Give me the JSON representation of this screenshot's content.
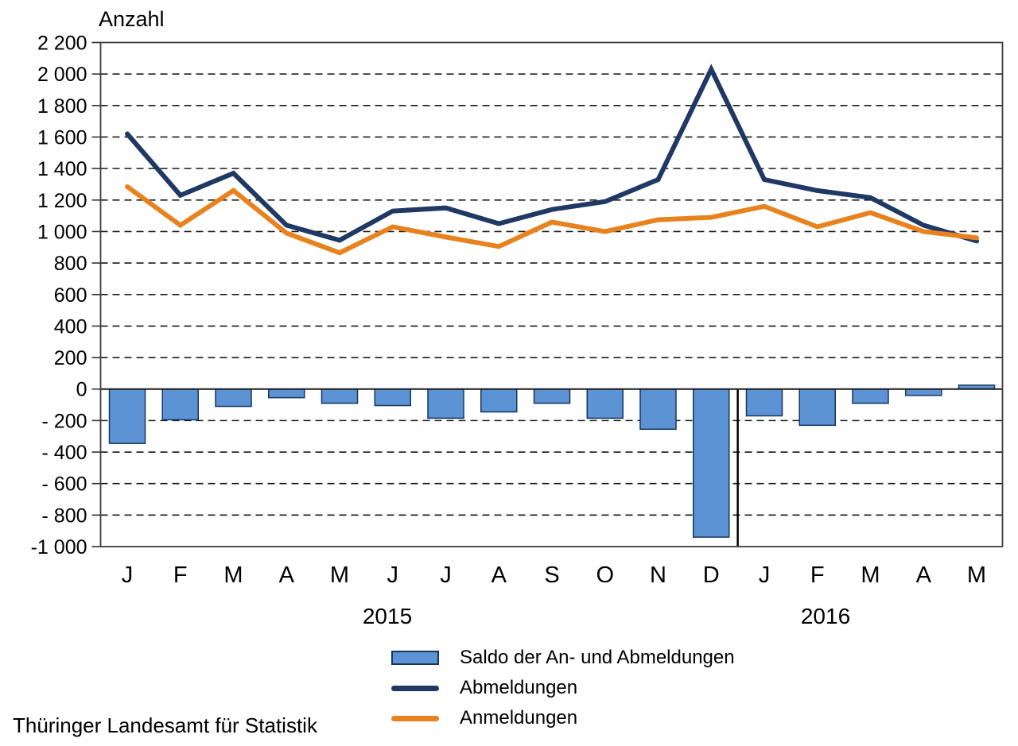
{
  "y_axis_title": "Anzahl",
  "source": "Thüringer Landesamt für Statistik",
  "years": [
    {
      "label": "2015"
    },
    {
      "label": "2016"
    }
  ],
  "legend": [
    {
      "label": "Saldo der An- und Abmeldungen",
      "swatch": "bar",
      "fill": "#5b93d5",
      "border": "#17365d"
    },
    {
      "label": "Abmeldungen",
      "swatch": "line",
      "fill": "#1f3864"
    },
    {
      "label": "Anmeldungen",
      "swatch": "line",
      "fill": "#e8821e"
    }
  ],
  "chart_data": {
    "type": "bar+line combo",
    "categories": [
      "J",
      "F",
      "M",
      "A",
      "M",
      "J",
      "J",
      "A",
      "S",
      "O",
      "N",
      "D",
      "J",
      "F",
      "M",
      "A",
      "M"
    ],
    "category_years": {
      "2015": [
        0,
        11
      ],
      "2016": [
        12,
        16
      ]
    },
    "series": [
      {
        "name": "Saldo der An- und Abmeldungen",
        "type": "bar",
        "color": "#5b93d5",
        "border_color": "#17365d",
        "values": [
          -345,
          -195,
          -110,
          -55,
          -90,
          -105,
          -185,
          -145,
          -90,
          -185,
          -255,
          -940,
          -170,
          -230,
          -90,
          -40,
          25
        ]
      },
      {
        "name": "Abmeldungen",
        "type": "line",
        "color": "#1f3864",
        "values": [
          1620,
          1230,
          1370,
          1040,
          945,
          1130,
          1150,
          1050,
          1140,
          1190,
          1330,
          2030,
          1330,
          1260,
          1215,
          1040,
          940
        ]
      },
      {
        "name": "Anmeldungen",
        "type": "line",
        "color": "#e8821e",
        "values": [
          1285,
          1040,
          1260,
          990,
          865,
          1030,
          965,
          905,
          1060,
          1000,
          1075,
          1090,
          1160,
          1030,
          1120,
          1000,
          960
        ]
      }
    ],
    "title": "",
    "xlabel": "",
    "ylabel": "Anzahl",
    "ylim": [
      -1000,
      2200
    ],
    "ytick_step": 200,
    "ytick_labels": [
      "2 200",
      "2 000",
      "1 800",
      "1 600",
      "1 400",
      "1 200",
      "1 000",
      "800",
      "600",
      "400",
      "200",
      "0",
      "- 200",
      "- 400",
      "- 600",
      "- 800",
      "-1 000"
    ],
    "grid": "horizontal dashed, solid zero line",
    "year_separator_after_index": 11,
    "legend_position": "bottom"
  }
}
